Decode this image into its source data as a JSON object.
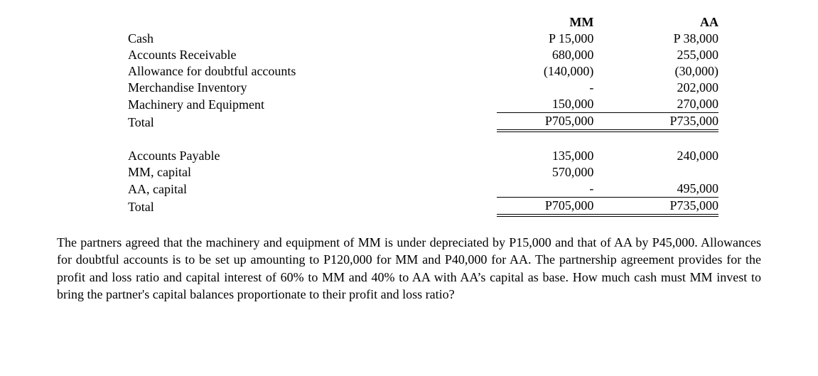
{
  "columns": {
    "col1": "MM",
    "col2": "AA"
  },
  "assets": [
    {
      "label": "Cash",
      "mm": "P 15,000",
      "aa": "P 38,000"
    },
    {
      "label": "Accounts Receivable",
      "mm": "680,000",
      "aa": "255,000"
    },
    {
      "label": "Allowance for doubtful accounts",
      "mm": "(140,000)",
      "aa": "(30,000)"
    },
    {
      "label": "Merchandise Inventory",
      "mm": "-",
      "aa": "202,000"
    },
    {
      "label": "Machinery and Equipment",
      "mm": "150,000",
      "aa": "270,000"
    }
  ],
  "assets_total": {
    "label": "Total",
    "mm": "P705,000",
    "aa": "P735,000"
  },
  "equities": [
    {
      "label": "Accounts Payable",
      "mm": "135,000",
      "aa": "240,000"
    },
    {
      "label": "MM, capital",
      "mm": "570,000",
      "aa": ""
    },
    {
      "label": "AA, capital",
      "mm": "-",
      "aa": "495,000"
    }
  ],
  "equities_total": {
    "label": "Total",
    "mm": "P705,000",
    "aa": "P735,000"
  },
  "paragraph": "The partners agreed that the machinery and equipment of MM is under depreciated by P15,000 and that of AA by P45,000. Allowances for doubtful accounts is to be set up amounting to P120,000 for MM and P40,000 for AA. The partnership agreement provides for the profit and loss ratio and capital interest of 60% to MM and 40% to AA with AA’s capital as base. How much cash must MM invest to bring the partner's capital balances proportionate to their profit and loss ratio?"
}
